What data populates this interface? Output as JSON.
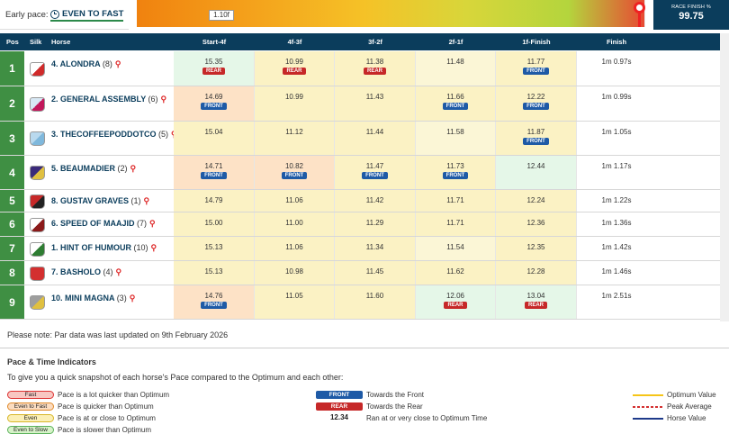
{
  "header": {
    "pace_label": "Early pace:",
    "pace_value": "EVEN TO FAST",
    "distance_label": "1.10f",
    "race_finish_label": "RACE FINISH %",
    "race_finish_value": "99.75",
    "race_finish_percent": 99.75
  },
  "table": {
    "columns": [
      "Pos",
      "Silk",
      "Horse",
      "Start-4f",
      "4f-3f",
      "3f-2f",
      "2f-1f",
      "1f-Finish",
      "Finish"
    ],
    "rows": [
      {
        "pos": "1",
        "name": "4. ALONDRA",
        "draw": "(8)",
        "silk": "#ffffff",
        "silk2": "#d02a2a",
        "s4": {
          "v": "15.35",
          "tag": "REAR",
          "bg": "c-green"
        },
        "s3": {
          "v": "10.99",
          "tag": "REAR",
          "bg": "c-yellow"
        },
        "s2": {
          "v": "11.38",
          "tag": "REAR",
          "bg": "c-yellow"
        },
        "s1": {
          "v": "11.48",
          "tag": "",
          "bg": "c-lyellow"
        },
        "sf": {
          "v": "11.77",
          "tag": "FRONT",
          "bg": "c-yellow"
        },
        "finish": "1m 0.97s"
      },
      {
        "pos": "2",
        "name": "2. GENERAL ASSEMBLY",
        "draw": "(6)",
        "silk": "#d8e8f5",
        "silk2": "#c2185b",
        "s4": {
          "v": "14.69",
          "tag": "FRONT",
          "bg": "c-orange"
        },
        "s3": {
          "v": "10.99",
          "tag": "",
          "bg": "c-yellow"
        },
        "s2": {
          "v": "11.43",
          "tag": "",
          "bg": "c-yellow"
        },
        "s1": {
          "v": "11.66",
          "tag": "FRONT",
          "bg": "c-yellow"
        },
        "sf": {
          "v": "12.22",
          "tag": "FRONT",
          "bg": "c-yellow"
        },
        "finish": "1m 0.99s"
      },
      {
        "pos": "3",
        "name": "3. THECOFFEEPODDOTCO",
        "draw": "(5)",
        "silk": "#b9d9ee",
        "silk2": "#7fb8dc",
        "s4": {
          "v": "15.04",
          "tag": "",
          "bg": "c-yellow"
        },
        "s3": {
          "v": "11.12",
          "tag": "",
          "bg": "c-yellow"
        },
        "s2": {
          "v": "11.44",
          "tag": "",
          "bg": "c-yellow"
        },
        "s1": {
          "v": "11.58",
          "tag": "",
          "bg": "c-lyellow"
        },
        "sf": {
          "v": "11.87",
          "tag": "FRONT",
          "bg": "c-yellow"
        },
        "finish": "1m 1.05s"
      },
      {
        "pos": "4",
        "name": "5. BEAUMADIER",
        "draw": "(2)",
        "silk": "#3a2a7a",
        "silk2": "#e0c040",
        "s4": {
          "v": "14.71",
          "tag": "FRONT",
          "bg": "c-orange"
        },
        "s3": {
          "v": "10.82",
          "tag": "FRONT",
          "bg": "c-orange"
        },
        "s2": {
          "v": "11.47",
          "tag": "FRONT",
          "bg": "c-yellow"
        },
        "s1": {
          "v": "11.73",
          "tag": "FRONT",
          "bg": "c-yellow"
        },
        "sf": {
          "v": "12.44",
          "tag": "",
          "bg": "c-green"
        },
        "finish": "1m 1.17s"
      },
      {
        "pos": "5",
        "name": "8. GUSTAV GRAVES",
        "draw": "(1)",
        "silk": "#c62828",
        "silk2": "#222222",
        "s4": {
          "v": "14.79",
          "tag": "",
          "bg": "c-yellow"
        },
        "s3": {
          "v": "11.06",
          "tag": "",
          "bg": "c-yellow"
        },
        "s2": {
          "v": "11.42",
          "tag": "",
          "bg": "c-yellow"
        },
        "s1": {
          "v": "11.71",
          "tag": "",
          "bg": "c-yellow"
        },
        "sf": {
          "v": "12.24",
          "tag": "",
          "bg": "c-yellow"
        },
        "finish": "1m 1.22s"
      },
      {
        "pos": "6",
        "name": "6. SPEED OF MAAJID",
        "draw": "(7)",
        "silk": "#ffffff",
        "silk2": "#8b1a1a",
        "s4": {
          "v": "15.00",
          "tag": "",
          "bg": "c-yellow"
        },
        "s3": {
          "v": "11.00",
          "tag": "",
          "bg": "c-yellow"
        },
        "s2": {
          "v": "11.29",
          "tag": "",
          "bg": "c-yellow"
        },
        "s1": {
          "v": "11.71",
          "tag": "",
          "bg": "c-yellow"
        },
        "sf": {
          "v": "12.36",
          "tag": "",
          "bg": "c-yellow"
        },
        "finish": "1m 1.36s"
      },
      {
        "pos": "7",
        "name": "1. HINT OF HUMOUR",
        "draw": "(10)",
        "silk": "#ffffff",
        "silk2": "#2e7d32",
        "s4": {
          "v": "15.13",
          "tag": "",
          "bg": "c-yellow"
        },
        "s3": {
          "v": "11.06",
          "tag": "",
          "bg": "c-yellow"
        },
        "s2": {
          "v": "11.34",
          "tag": "",
          "bg": "c-yellow"
        },
        "s1": {
          "v": "11.54",
          "tag": "",
          "bg": "c-lyellow"
        },
        "sf": {
          "v": "12.35",
          "tag": "",
          "bg": "c-yellow"
        },
        "finish": "1m 1.42s"
      },
      {
        "pos": "8",
        "name": "7. BASHOLO",
        "draw": "(4)",
        "silk": "#d32f2f",
        "silk2": "#d32f2f",
        "s4": {
          "v": "15.13",
          "tag": "",
          "bg": "c-yellow"
        },
        "s3": {
          "v": "10.98",
          "tag": "",
          "bg": "c-yellow"
        },
        "s2": {
          "v": "11.45",
          "tag": "",
          "bg": "c-yellow"
        },
        "s1": {
          "v": "11.62",
          "tag": "",
          "bg": "c-yellow"
        },
        "sf": {
          "v": "12.28",
          "tag": "",
          "bg": "c-yellow"
        },
        "finish": "1m 1.46s"
      },
      {
        "pos": "9",
        "name": "10. MINI MAGNA",
        "draw": "(3)",
        "silk": "#9e9e9e",
        "silk2": "#e0c040",
        "s4": {
          "v": "14.76",
          "tag": "FRONT",
          "bg": "c-orange"
        },
        "s3": {
          "v": "11.05",
          "tag": "",
          "bg": "c-yellow"
        },
        "s2": {
          "v": "11.60",
          "tag": "",
          "bg": "c-yellow"
        },
        "s1": {
          "v": "12.06",
          "tag": "REAR",
          "bg": "c-green"
        },
        "sf": {
          "v": "13.04",
          "tag": "REAR",
          "bg": "c-green"
        },
        "finish": "1m 2.51s"
      }
    ]
  },
  "note": "Please note: Par data was last updated on 9th February 2026",
  "legend": {
    "title": "Pace & Time Indicators",
    "subtitle": "To give you a quick snapshot of each horse's Pace compared to the Optimum and each other:",
    "pace_items": [
      {
        "label": "Fast",
        "desc": "Pace is a lot quicker than Optimum",
        "bg": "#f8c7c2",
        "border": "#d33"
      },
      {
        "label": "Even to Fast",
        "desc": "Pace is quicker than Optimum",
        "bg": "#fbdcc0",
        "border": "#e08a2a"
      },
      {
        "label": "Even",
        "desc": "Pace is at or close to Optimum",
        "bg": "#fbefb5",
        "border": "#d8b72a"
      },
      {
        "label": "Even to Slow",
        "desc": "Pace is slower than Optimum",
        "bg": "#d6f2c8",
        "border": "#5bb35b"
      }
    ],
    "tag_items": [
      {
        "label": "FRONT",
        "desc": "Towards the Front",
        "bg": "#1e5aa6"
      },
      {
        "label": "REAR",
        "desc": "Towards the Rear",
        "bg": "#c62828"
      }
    ],
    "time_item": {
      "label": "12.34",
      "desc": "Ran at or very close to Optimum Time"
    },
    "line_items": [
      {
        "desc": "Optimum Value",
        "color": "#f5c518",
        "style": "solid"
      },
      {
        "desc": "Peak Average",
        "color": "#d32f2f",
        "style": "dotted"
      },
      {
        "desc": "Horse Value",
        "color": "#1e3a8a",
        "style": "solid"
      }
    ]
  }
}
